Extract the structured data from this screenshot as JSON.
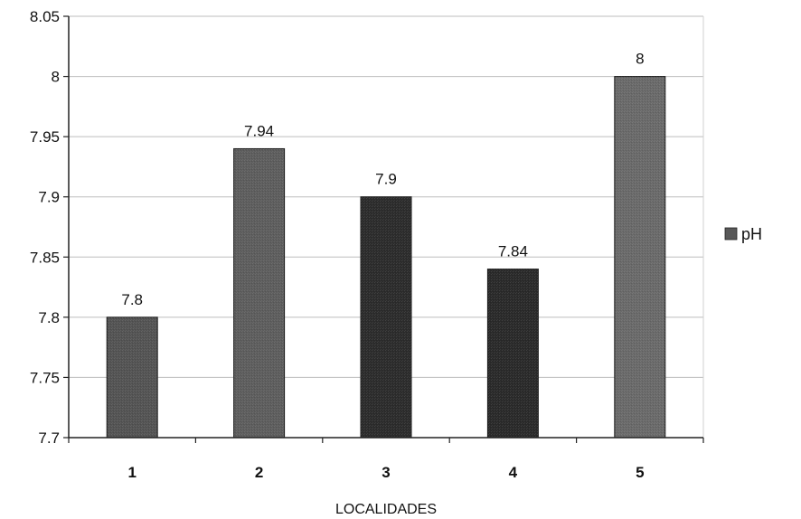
{
  "chart_data": {
    "type": "bar",
    "categories": [
      "1",
      "2",
      "3",
      "4",
      "5"
    ],
    "series": [
      {
        "name": "pH",
        "values": [
          7.8,
          7.94,
          7.9,
          7.84,
          8
        ]
      }
    ],
    "data_labels": [
      "7.8",
      "7.94",
      "7.9",
      "7.84",
      "8"
    ],
    "xlabel": "LOCALIDADES",
    "ylabel": "",
    "ylim": [
      7.7,
      8.05
    ],
    "yticks": [
      "7.7",
      "7.75",
      "7.8",
      "7.85",
      "7.9",
      "7.95",
      "8",
      "8.05"
    ],
    "grid": true,
    "legend": "right",
    "bar_colors": [
      "#545454",
      "#5e5e5e",
      "#2c2c2c",
      "#2a2a2a",
      "#6a6a6a"
    ],
    "legend_color": "#585858"
  }
}
